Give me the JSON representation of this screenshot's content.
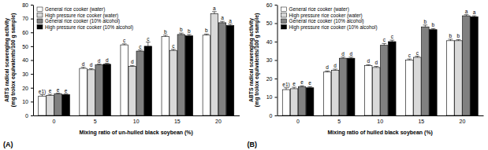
{
  "chart_data": [
    {
      "type": "bar",
      "title": "(A)",
      "x_label": "Mixing ratio of un-hulled black soybean (%)",
      "y_label": "ABTS radical scavenging activity (mg trolox equivalents/100 g sample)",
      "categories": [
        "0",
        "5",
        "10",
        "15",
        "20"
      ],
      "ylim": [
        0,
        80
      ],
      "yticks": [
        0,
        10,
        20,
        30,
        40,
        50,
        60,
        70,
        80
      ],
      "legend": "upper left",
      "series": [
        {
          "name": "General rice cooker (water)",
          "color": "#ffffff",
          "values": [
            14,
            34,
            51,
            57,
            58
          ],
          "errors": [
            1,
            0.8,
            0.7,
            1,
            0.8
          ],
          "annotations": [
            "e1)",
            "d",
            "c",
            "b",
            "b"
          ]
        },
        {
          "name": "High pressure rice cooker (water)",
          "color": "#d9d9d9",
          "values": [
            14.5,
            33,
            35.5,
            47,
            73.5
          ],
          "errors": [
            0.8,
            0.8,
            0.6,
            0.8,
            1.5
          ],
          "annotations": [
            "e",
            "d",
            "d",
            "c",
            "a"
          ]
        },
        {
          "name": "General rice cooker (10% alcohol)",
          "color": "#808080",
          "values": [
            15.5,
            36.5,
            46.5,
            58.5,
            67
          ],
          "errors": [
            0.6,
            0.6,
            0.8,
            1,
            1
          ],
          "annotations": [
            "e",
            "d",
            "c",
            "b",
            "a"
          ]
        },
        {
          "name": "High pressure rice cooker (10% alcohol)",
          "color": "#000000",
          "values": [
            15,
            37,
            50,
            57.5,
            65
          ],
          "errors": [
            0.6,
            0.7,
            3,
            1,
            1
          ],
          "annotations": [
            "e",
            "d",
            "c",
            "b",
            "a"
          ]
        }
      ]
    },
    {
      "type": "bar",
      "title": "(B)",
      "x_label": "Mixing ratio of hulled black soybean (%)",
      "y_label": "ABTS radical scavenging activity (mg trolox equivalents/100 g sample)",
      "categories": [
        "0",
        "5",
        "10",
        "15",
        "20"
      ],
      "ylim": [
        0,
        60
      ],
      "yticks": [
        0,
        10,
        20,
        30,
        40,
        50,
        60
      ],
      "legend": "upper left",
      "series": [
        {
          "name": "General rice cooker (water)",
          "color": "#ffffff",
          "values": [
            14,
            23.5,
            27,
            30,
            40.5
          ],
          "errors": [
            1,
            0.6,
            0.5,
            0.6,
            0.8
          ],
          "annotations": [
            "e1)",
            "d",
            "d",
            "c",
            "b"
          ]
        },
        {
          "name": "High pressure rice cooker (water)",
          "color": "#d9d9d9",
          "values": [
            14.5,
            24.5,
            26,
            31.5,
            40.5
          ],
          "errors": [
            0.8,
            0.6,
            0.6,
            0.6,
            0.6
          ],
          "annotations": [
            "e",
            "d",
            "d",
            "c",
            "b"
          ]
        },
        {
          "name": "General rice cooker (10% alcohol)",
          "color": "#808080",
          "values": [
            15.5,
            31,
            38,
            48,
            54
          ],
          "errors": [
            0.6,
            0.6,
            1,
            1,
            0.6
          ],
          "annotations": [
            "e",
            "d",
            "c",
            "b",
            "a"
          ]
        },
        {
          "name": "High pressure rice cooker (10% alcohol)",
          "color": "#000000",
          "values": [
            15,
            31,
            40,
            46.5,
            53.5
          ],
          "errors": [
            0.6,
            0.6,
            0.8,
            0.6,
            0.5
          ],
          "annotations": [
            "e",
            "d",
            "c",
            "b",
            "a"
          ]
        }
      ]
    }
  ]
}
